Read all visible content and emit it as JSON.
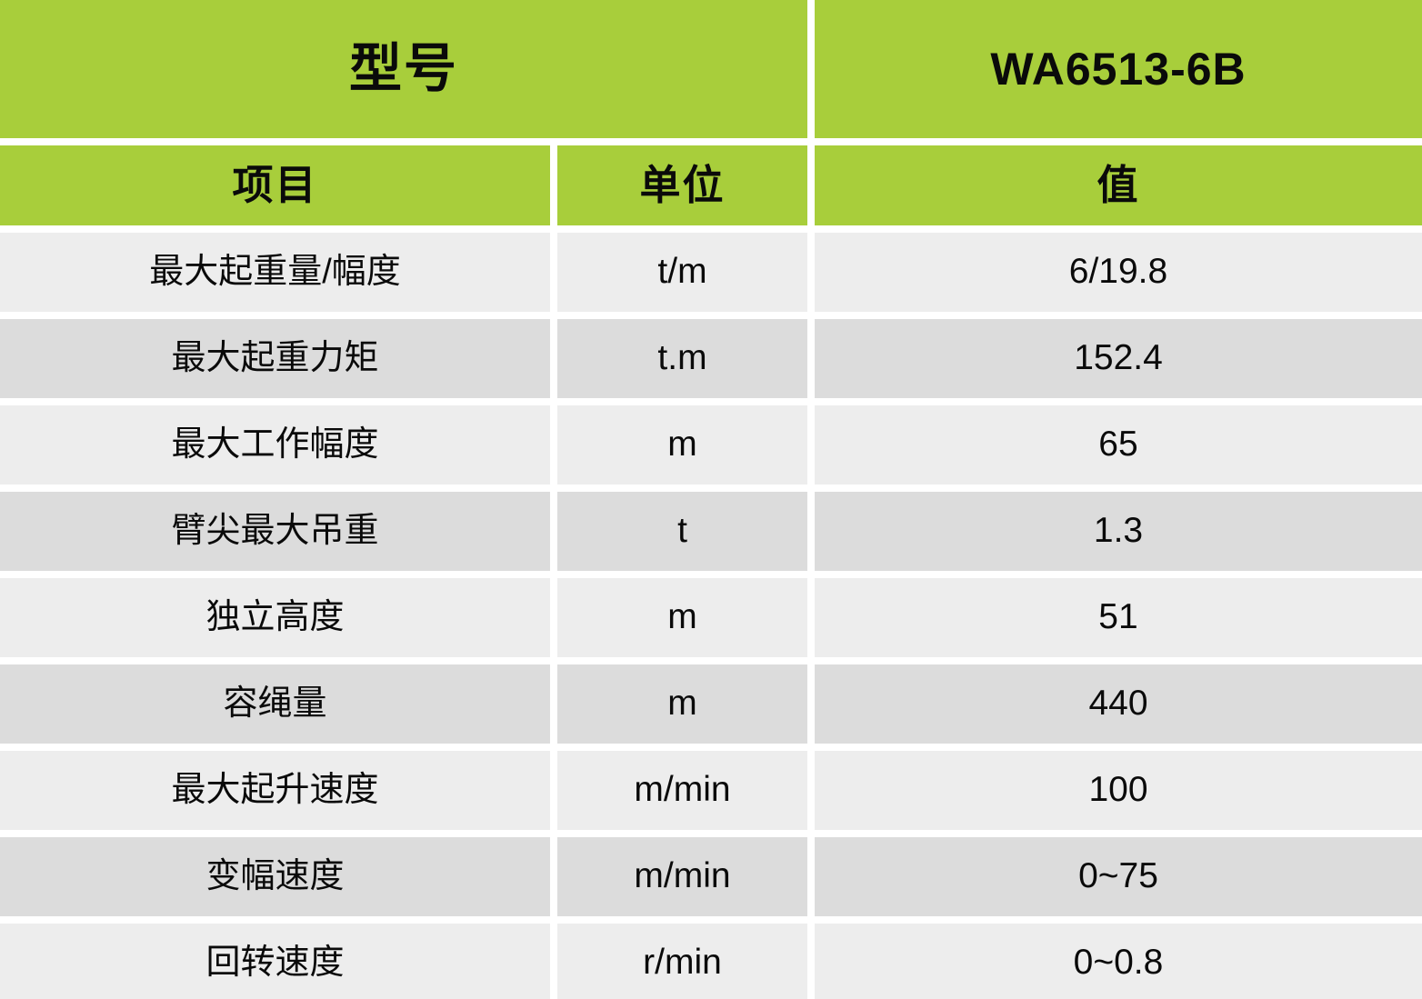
{
  "table": {
    "header": {
      "model_label": "型号",
      "model_value": "WA6513-6B",
      "columns": [
        "项目",
        "单位",
        "值"
      ]
    },
    "rows": [
      {
        "item": "最大起重量/幅度",
        "unit": "t/m",
        "value": "6/19.8"
      },
      {
        "item": "最大起重力矩",
        "unit": "t.m",
        "value": "152.4"
      },
      {
        "item": "最大工作幅度",
        "unit": "m",
        "value": "65"
      },
      {
        "item": "臂尖最大吊重",
        "unit": "t",
        "value": "1.3"
      },
      {
        "item": "独立高度",
        "unit": "m",
        "value": "51"
      },
      {
        "item": "容绳量",
        "unit": "m",
        "value": "440"
      },
      {
        "item": "最大起升速度",
        "unit": "m/min",
        "value": "100"
      },
      {
        "item": "变幅速度",
        "unit": "m/min",
        "value": "0~75"
      },
      {
        "item": "回转速度",
        "unit": "r/min",
        "value": "0~0.8"
      }
    ],
    "colors": {
      "header_green": "#a8ce3b",
      "row_light": "#ededed",
      "row_dark": "#dcdcdc",
      "gap_white": "#ffffff",
      "text": "#0a0a0a"
    }
  },
  "chart_data": {
    "type": "table",
    "title": "型号 WA6513-6B",
    "columns": [
      "项目",
      "单位",
      "值"
    ],
    "rows": [
      [
        "最大起重量/幅度",
        "t/m",
        "6/19.8"
      ],
      [
        "最大起重力矩",
        "t.m",
        "152.4"
      ],
      [
        "最大工作幅度",
        "m",
        "65"
      ],
      [
        "臂尖最大吊重",
        "t",
        "1.3"
      ],
      [
        "独立高度",
        "m",
        "51"
      ],
      [
        "容绳量",
        "m",
        "440"
      ],
      [
        "最大起升速度",
        "m/min",
        "100"
      ],
      [
        "变幅速度",
        "m/min",
        "0~75"
      ],
      [
        "回转速度",
        "r/min",
        "0~0.8"
      ]
    ]
  }
}
